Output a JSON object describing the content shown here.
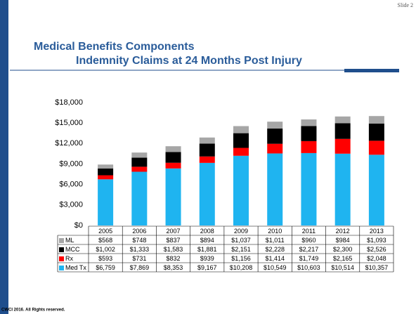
{
  "slide_number": "Slide 2",
  "footer": "CWCI 2016.  All Rights reserved.",
  "chart_data": {
    "type": "stacked_bar",
    "title": "Medical Benefits Components",
    "subtitle": "Indemnity Claims at 24 Months Post Injury",
    "categories": [
      "2005",
      "2006",
      "2007",
      "2008",
      "2009",
      "2010",
      "2011",
      "2012",
      "2013"
    ],
    "series": [
      {
        "name": "ML",
        "color": "#a6a6a6",
        "values": [
          568,
          748,
          837,
          894,
          1037,
          1011,
          960,
          984,
          1093
        ],
        "value_labels": [
          "$568",
          "$748",
          "$837",
          "$894",
          "$1,037",
          "$1,011",
          "$960",
          "$984",
          "$1,093"
        ]
      },
      {
        "name": "MCC",
        "color": "#000000",
        "values": [
          1002,
          1333,
          1583,
          1881,
          2151,
          2228,
          2217,
          2300,
          2526
        ],
        "value_labels": [
          "$1,002",
          "$1,333",
          "$1,583",
          "$1,881",
          "$2,151",
          "$2,228",
          "$2,217",
          "$2,300",
          "$2,526"
        ]
      },
      {
        "name": "Rx",
        "color": "#ff0000",
        "values": [
          593,
          731,
          832,
          939,
          1156,
          1414,
          1749,
          2165,
          2048
        ],
        "value_labels": [
          "$593",
          "$731",
          "$832",
          "$939",
          "$1,156",
          "$1,414",
          "$1,749",
          "$2,165",
          "$2,048"
        ]
      },
      {
        "name": "Med Tx",
        "color": "#1fb4f0",
        "values": [
          6759,
          7869,
          8353,
          9167,
          10208,
          10549,
          10603,
          10514,
          10357
        ],
        "value_labels": [
          "$6,759",
          "$7,869",
          "$8,353",
          "$9,167",
          "$10,208",
          "$10,549",
          "$10,603",
          "$10,514",
          "$10,357"
        ]
      }
    ],
    "ylim": [
      0,
      18000
    ],
    "yticks": [
      {
        "value": 0,
        "label": "$0"
      },
      {
        "value": 3000,
        "label": "$3,000"
      },
      {
        "value": 6000,
        "label": "$6,000"
      },
      {
        "value": 9000,
        "label": "$9,000"
      },
      {
        "value": 12000,
        "label": "$12,000"
      },
      {
        "value": 15000,
        "label": "$15,000"
      },
      {
        "value": 18000,
        "label": "$18,000"
      }
    ]
  }
}
